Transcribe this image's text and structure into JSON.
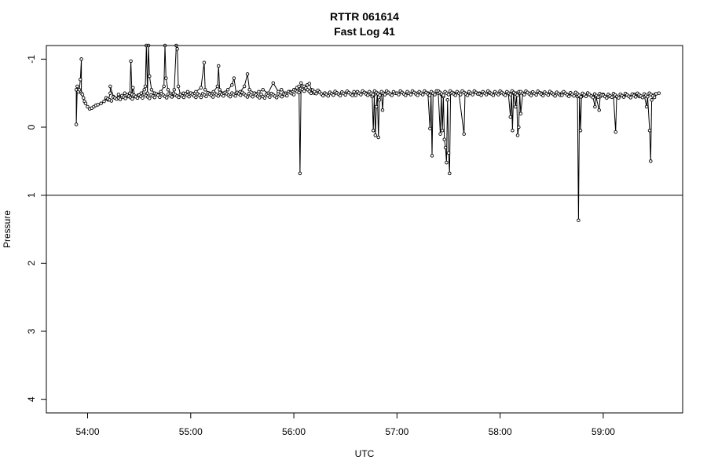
{
  "chart_data": {
    "type": "line",
    "title": "RTTR 061614",
    "subtitle": "Fast Log 41",
    "xlabel": "UTC",
    "ylabel": "Pressure",
    "x_unit": "minutes past the hour",
    "xlim": [
      53.6,
      59.77
    ],
    "ylim": [
      4.2,
      -1.2
    ],
    "y_reversed": true,
    "x_ticks": [
      {
        "value": 54,
        "label": "54:00"
      },
      {
        "value": 55,
        "label": "55:00"
      },
      {
        "value": 56,
        "label": "56:00"
      },
      {
        "value": 57,
        "label": "57:00"
      },
      {
        "value": 58,
        "label": "58:00"
      },
      {
        "value": 59,
        "label": "59:00"
      }
    ],
    "y_ticks": [
      {
        "value": -1,
        "label": "-1"
      },
      {
        "value": 0,
        "label": "0"
      },
      {
        "value": 1,
        "label": "1"
      },
      {
        "value": 2,
        "label": "2"
      },
      {
        "value": 3,
        "label": "3"
      },
      {
        "value": 4,
        "label": "4"
      }
    ],
    "reference_lines": [
      {
        "axis": "y",
        "value": 1
      }
    ],
    "grid": false,
    "legend": "none",
    "marker": "open-circle",
    "series": [
      {
        "points": [
          [
            53.89,
            -0.55
          ],
          [
            53.89,
            -0.04
          ],
          [
            53.9,
            -0.6
          ],
          [
            53.91,
            -0.52
          ],
          [
            53.92,
            -0.55
          ],
          [
            53.93,
            -0.7
          ],
          [
            53.94,
            -1.0
          ],
          [
            53.94,
            -0.5
          ],
          [
            53.95,
            -0.48
          ],
          [
            53.96,
            -0.43
          ],
          [
            53.97,
            -0.38
          ],
          [
            53.98,
            -0.35
          ],
          [
            54.0,
            -0.3
          ],
          [
            54.02,
            -0.27
          ],
          [
            54.04,
            -0.28
          ],
          [
            54.06,
            -0.3
          ],
          [
            54.08,
            -0.32
          ],
          [
            54.1,
            -0.33
          ],
          [
            54.13,
            -0.35
          ],
          [
            54.16,
            -0.38
          ],
          [
            54.18,
            -0.42
          ],
          [
            54.2,
            -0.4
          ],
          [
            54.22,
            -0.5
          ],
          [
            54.22,
            -0.6
          ],
          [
            54.25,
            -0.45
          ],
          [
            54.28,
            -0.42
          ],
          [
            54.3,
            -0.48
          ],
          [
            54.33,
            -0.44
          ],
          [
            54.36,
            -0.5
          ],
          [
            54.39,
            -0.45
          ],
          [
            54.41,
            -0.5
          ],
          [
            54.42,
            -0.97
          ],
          [
            54.43,
            -0.48
          ],
          [
            54.44,
            -0.58
          ],
          [
            54.46,
            -0.45
          ],
          [
            54.49,
            -0.47
          ],
          [
            54.52,
            -0.5
          ],
          [
            54.55,
            -0.55
          ],
          [
            54.56,
            -0.6
          ],
          [
            54.57,
            -1.2
          ],
          [
            54.58,
            -0.5
          ],
          [
            54.59,
            -1.2
          ],
          [
            54.6,
            -0.75
          ],
          [
            54.62,
            -0.55
          ],
          [
            54.65,
            -0.5
          ],
          [
            54.68,
            -0.48
          ],
          [
            54.71,
            -0.52
          ],
          [
            54.74,
            -0.6
          ],
          [
            54.75,
            -1.2
          ],
          [
            54.76,
            -0.72
          ],
          [
            54.78,
            -0.55
          ],
          [
            54.8,
            -0.5
          ],
          [
            54.82,
            -0.45
          ],
          [
            54.84,
            -0.55
          ],
          [
            54.86,
            -1.2
          ],
          [
            54.87,
            -1.15
          ],
          [
            54.88,
            -0.6
          ],
          [
            54.9,
            -0.48
          ],
          [
            54.93,
            -0.5
          ],
          [
            54.97,
            -0.52
          ],
          [
            55.0,
            -0.5
          ],
          [
            55.05,
            -0.52
          ],
          [
            55.1,
            -0.58
          ],
          [
            55.13,
            -0.95
          ],
          [
            55.14,
            -0.55
          ],
          [
            55.18,
            -0.5
          ],
          [
            55.22,
            -0.52
          ],
          [
            55.26,
            -0.6
          ],
          [
            55.27,
            -0.9
          ],
          [
            55.28,
            -0.55
          ],
          [
            55.32,
            -0.5
          ],
          [
            55.36,
            -0.55
          ],
          [
            55.4,
            -0.62
          ],
          [
            55.42,
            -0.72
          ],
          [
            55.44,
            -0.5
          ],
          [
            55.48,
            -0.52
          ],
          [
            55.52,
            -0.6
          ],
          [
            55.55,
            -0.78
          ],
          [
            55.57,
            -0.55
          ],
          [
            55.62,
            -0.5
          ],
          [
            55.66,
            -0.52
          ],
          [
            55.7,
            -0.55
          ],
          [
            55.75,
            -0.5
          ],
          [
            55.8,
            -0.65
          ],
          [
            55.85,
            -0.52
          ],
          [
            55.88,
            -0.55
          ],
          [
            55.92,
            -0.5
          ],
          [
            55.96,
            -0.52
          ],
          [
            56.0,
            -0.55
          ],
          [
            56.03,
            -0.58
          ],
          [
            56.05,
            -0.6
          ],
          [
            56.06,
            0.68
          ],
          [
            56.07,
            -0.65
          ],
          [
            56.1,
            -0.6
          ],
          [
            56.13,
            -0.62
          ],
          [
            56.15,
            -0.64
          ],
          [
            56.17,
            -0.55
          ],
          [
            56.2,
            -0.5
          ],
          [
            56.3,
            -0.5
          ],
          [
            56.4,
            -0.5
          ],
          [
            56.5,
            -0.5
          ],
          [
            56.6,
            -0.5
          ],
          [
            56.7,
            -0.5
          ],
          [
            56.76,
            -0.45
          ],
          [
            56.77,
            0.05
          ],
          [
            56.78,
            -0.48
          ],
          [
            56.79,
            0.12
          ],
          [
            56.8,
            -0.3
          ],
          [
            56.81,
            -0.5
          ],
          [
            56.82,
            0.15
          ],
          [
            56.83,
            -0.4
          ],
          [
            56.85,
            -0.5
          ],
          [
            56.86,
            -0.25
          ],
          [
            56.87,
            -0.5
          ],
          [
            56.9,
            -0.5
          ],
          [
            57.0,
            -0.5
          ],
          [
            57.1,
            -0.5
          ],
          [
            57.2,
            -0.5
          ],
          [
            57.3,
            -0.5
          ],
          [
            57.32,
            0.02
          ],
          [
            57.33,
            -0.5
          ],
          [
            57.34,
            0.42
          ],
          [
            57.35,
            -0.5
          ],
          [
            57.4,
            -0.5
          ],
          [
            57.42,
            0.1
          ],
          [
            57.43,
            -0.48
          ],
          [
            57.44,
            0.05
          ],
          [
            57.45,
            -0.45
          ],
          [
            57.46,
            0.18
          ],
          [
            57.47,
            0.3
          ],
          [
            57.48,
            0.52
          ],
          [
            57.49,
            -0.4
          ],
          [
            57.5,
            0.38
          ],
          [
            57.51,
            0.68
          ],
          [
            57.52,
            -0.5
          ],
          [
            57.55,
            -0.5
          ],
          [
            57.6,
            -0.5
          ],
          [
            57.65,
            0.1
          ],
          [
            57.66,
            -0.5
          ],
          [
            57.7,
            -0.5
          ],
          [
            57.8,
            -0.5
          ],
          [
            57.9,
            -0.5
          ],
          [
            58.0,
            -0.5
          ],
          [
            58.08,
            -0.5
          ],
          [
            58.1,
            -0.15
          ],
          [
            58.11,
            -0.5
          ],
          [
            58.12,
            0.05
          ],
          [
            58.13,
            -0.5
          ],
          [
            58.15,
            -0.3
          ],
          [
            58.16,
            -0.5
          ],
          [
            58.17,
            0.12
          ],
          [
            58.18,
            0.0
          ],
          [
            58.19,
            -0.5
          ],
          [
            58.2,
            -0.2
          ],
          [
            58.22,
            -0.5
          ],
          [
            58.3,
            -0.5
          ],
          [
            58.4,
            -0.5
          ],
          [
            58.5,
            -0.5
          ],
          [
            58.6,
            -0.5
          ],
          [
            58.65,
            -0.48
          ],
          [
            58.7,
            -0.48
          ],
          [
            58.75,
            -0.45
          ],
          [
            58.76,
            1.37
          ],
          [
            58.77,
            -0.45
          ],
          [
            58.78,
            0.05
          ],
          [
            58.79,
            -0.45
          ],
          [
            58.85,
            -0.48
          ],
          [
            58.9,
            -0.45
          ],
          [
            58.92,
            -0.3
          ],
          [
            58.93,
            -0.45
          ],
          [
            58.96,
            -0.25
          ],
          [
            58.97,
            -0.45
          ],
          [
            59.0,
            -0.48
          ],
          [
            59.05,
            -0.45
          ],
          [
            59.1,
            -0.45
          ],
          [
            59.12,
            0.07
          ],
          [
            59.13,
            -0.45
          ],
          [
            59.2,
            -0.45
          ],
          [
            59.3,
            -0.48
          ],
          [
            59.35,
            -0.45
          ],
          [
            59.4,
            -0.45
          ],
          [
            59.42,
            -0.3
          ],
          [
            59.43,
            -0.45
          ],
          [
            59.45,
            0.05
          ],
          [
            59.46,
            0.5
          ],
          [
            59.47,
            -0.4
          ],
          [
            59.5,
            -0.48
          ],
          [
            59.54,
            -0.5
          ]
        ],
        "color": "#000000"
      }
    ]
  }
}
